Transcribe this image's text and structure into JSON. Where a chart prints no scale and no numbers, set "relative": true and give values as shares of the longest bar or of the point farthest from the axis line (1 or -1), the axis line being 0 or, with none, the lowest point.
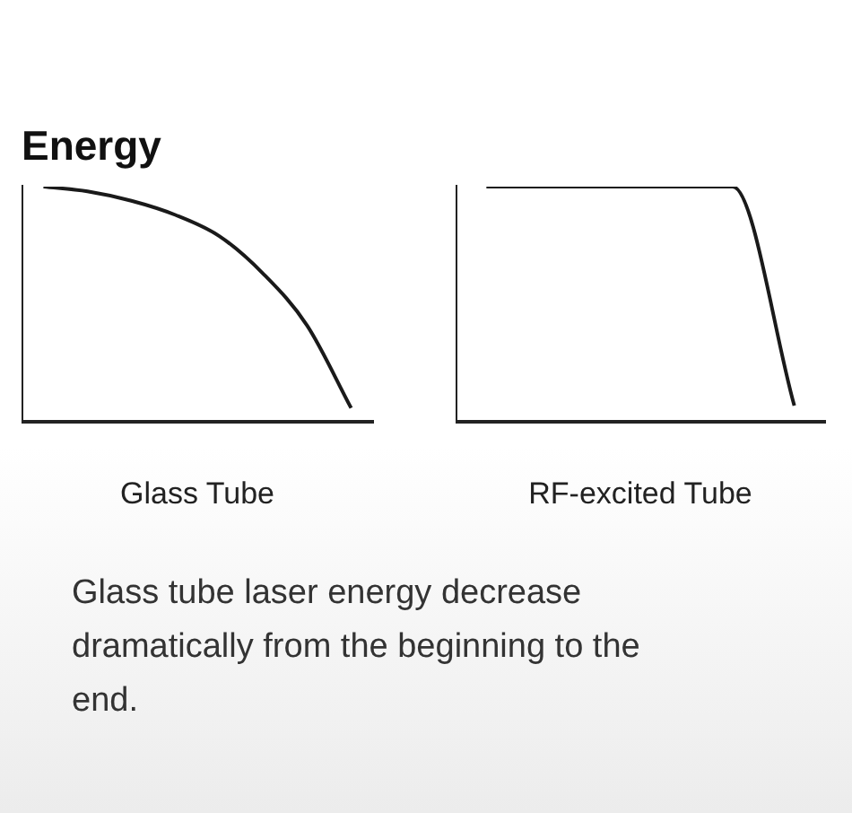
{
  "chart_data": [
    {
      "type": "line",
      "title": "Energy",
      "xlabel": "Glass Tube",
      "relative": true,
      "marker": "none",
      "line_style": "solid",
      "categories": [
        null,
        null,
        null,
        null,
        null,
        null,
        null,
        null
      ],
      "series": [
        {
          "color": "#1a1a1a",
          "values": [
            1,
            0.98,
            0.94,
            0.88,
            0.79,
            0.63,
            0.41,
            0.06
          ]
        }
      ],
      "annotations": [
        "Glass tube laser energy decrease dramatically from the beginning to the end."
      ]
    },
    {
      "type": "line",
      "xlabel": "RF-excited Tube",
      "relative": true,
      "marker": "none",
      "line_style": "solid",
      "categories": [
        null,
        null,
        null,
        null,
        null,
        null
      ],
      "series": [
        {
          "color": "#1a1a1a",
          "values": [
            1,
            1,
            1,
            1,
            1,
            0.07
          ]
        }
      ]
    }
  ]
}
